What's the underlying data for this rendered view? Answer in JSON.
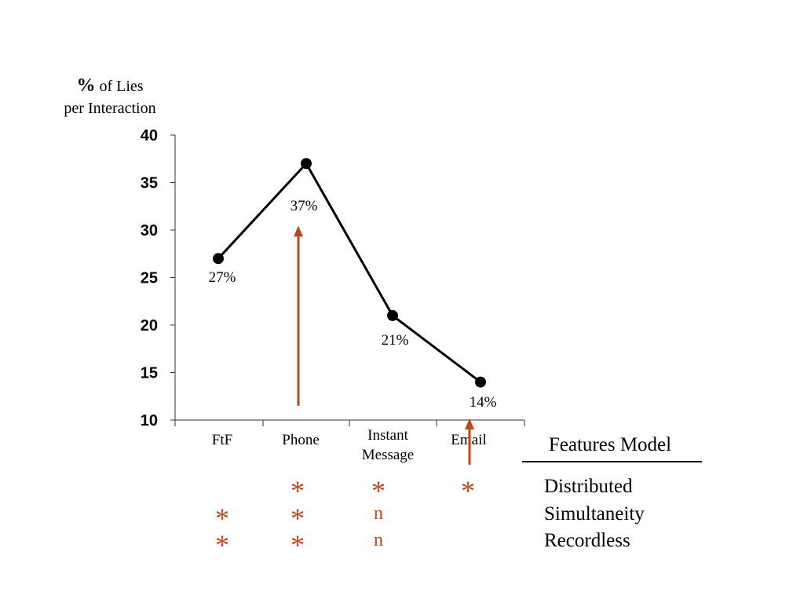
{
  "accent_color": "#c0461a",
  "line_color": "#000000",
  "y_axis_title": {
    "pct_symbol": "%",
    "line1_rest": " of Lies",
    "line2": "per Interaction"
  },
  "chart_data": {
    "type": "line",
    "categories": [
      "FtF",
      "Phone",
      "Instant Message",
      "Email"
    ],
    "category_lines": [
      [
        "FtF"
      ],
      [
        "Phone"
      ],
      [
        "Instant",
        "Message"
      ],
      [
        "Email"
      ]
    ],
    "values": [
      27,
      37,
      21,
      14
    ],
    "data_labels": [
      "27%",
      "37%",
      "21%",
      "14%"
    ],
    "title": "",
    "xlabel": "",
    "ylim": [
      10,
      40
    ],
    "yticks": [
      10,
      15,
      20,
      25,
      30,
      35,
      40
    ],
    "grid": false,
    "legend": "none",
    "annotations": [
      {
        "type": "arrow",
        "category": "Phone",
        "from_value": 11.5,
        "to_value": 30.3,
        "color": "#c0461a"
      },
      {
        "type": "arrow",
        "category": "Email",
        "from_value": 5.3,
        "to_value": 10,
        "color": "#c0461a"
      }
    ]
  },
  "features_model": {
    "title": "Features Model",
    "features": [
      {
        "label": "Distributed",
        "marks": [
          "",
          "*",
          "*",
          "*"
        ]
      },
      {
        "label": "Simultaneity",
        "marks": [
          "*",
          "*",
          "n",
          ""
        ]
      },
      {
        "label": "Recordless",
        "marks": [
          "*",
          "*",
          "n",
          ""
        ]
      }
    ]
  }
}
